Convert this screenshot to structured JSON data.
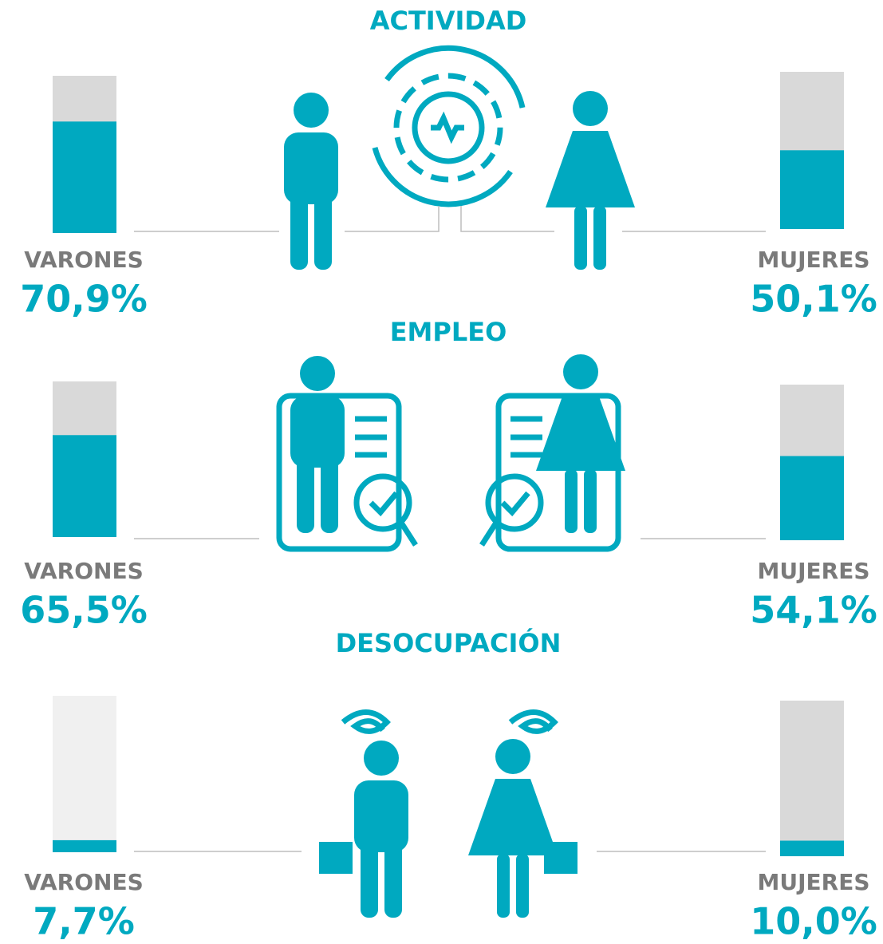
{
  "ylim": [
    0,
    100
  ],
  "color": "#00a9c0",
  "sections": [
    {
      "title": "ACTIVIDAD",
      "left": {
        "label": "VARONES",
        "value": 70.9,
        "value_label": "70,9%"
      },
      "right": {
        "label": "MUJERES",
        "value": 50.1,
        "value_label": "50,1%"
      }
    },
    {
      "title": "EMPLEO",
      "left": {
        "label": "VARONES",
        "value": 65.5,
        "value_label": "65,5%"
      },
      "right": {
        "label": "MUJERES",
        "value": 54.1,
        "value_label": "54,1%"
      }
    },
    {
      "title": "DESOCUPACIÓN",
      "left": {
        "label": "VARONES",
        "value": 7.7,
        "value_label": "7,7%"
      },
      "right": {
        "label": "MUJERES",
        "value": 10.0,
        "value_label": "10,0%"
      }
    }
  ]
}
